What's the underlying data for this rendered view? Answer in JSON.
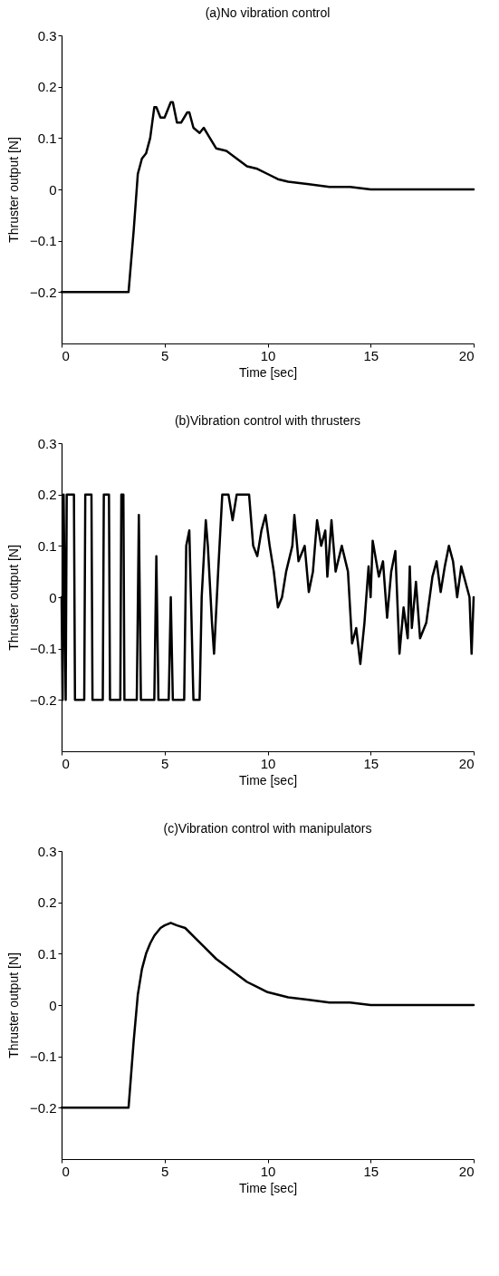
{
  "chart_data": [
    {
      "type": "line",
      "title": "(a)No vibration control",
      "xlabel": "Time [sec]",
      "ylabel": "Thruster output [N]",
      "xlim": [
        0,
        20
      ],
      "ylim": [
        -0.3,
        0.3
      ],
      "xticks": [
        0,
        5,
        10,
        15,
        20
      ],
      "yticks": [
        -0.2,
        -0.1,
        0,
        0.1,
        0.2,
        0.3
      ],
      "x": [
        0,
        1,
        2,
        3,
        3.25,
        3.5,
        3.7,
        3.9,
        4.1,
        4.3,
        4.5,
        4.6,
        4.8,
        5.0,
        5.3,
        5.4,
        5.6,
        5.8,
        6.1,
        6.2,
        6.4,
        6.7,
        6.9,
        7.2,
        7.5,
        8,
        8.5,
        9,
        9.5,
        10,
        10.5,
        11,
        12,
        13,
        14,
        15,
        16,
        17,
        18,
        19,
        20
      ],
      "series": [
        {
          "color": "#000000",
          "values": [
            -0.2,
            -0.2,
            -0.2,
            -0.2,
            -0.2,
            -0.08,
            0.03,
            0.06,
            0.07,
            0.1,
            0.16,
            0.16,
            0.14,
            0.14,
            0.17,
            0.17,
            0.13,
            0.13,
            0.15,
            0.15,
            0.12,
            0.11,
            0.12,
            0.1,
            0.08,
            0.075,
            0.06,
            0.045,
            0.04,
            0.03,
            0.02,
            0.015,
            0.01,
            0.005,
            0.005,
            0,
            0,
            0,
            0,
            0,
            0
          ]
        }
      ]
    },
    {
      "type": "line",
      "title": "(b)Vibration control with thrusters",
      "xlabel": "Time [sec]",
      "ylabel": "Thruster output [N]",
      "xlim": [
        0,
        20
      ],
      "ylim": [
        -0.3,
        0.3
      ],
      "xticks": [
        0,
        5,
        10,
        15,
        20
      ],
      "yticks": [
        -0.2,
        -0.1,
        0,
        0.1,
        0.2,
        0.3
      ],
      "x": [
        0,
        0.05,
        0.1,
        0.2,
        0.25,
        0.6,
        0.65,
        1.1,
        1.15,
        1.45,
        1.5,
        2.0,
        2.05,
        2.3,
        2.35,
        2.85,
        2.9,
        3.0,
        3.05,
        3.65,
        3.75,
        3.85,
        4.5,
        4.6,
        4.7,
        5.2,
        5.3,
        5.4,
        5.95,
        6.05,
        6.2,
        6.4,
        6.7,
        6.8,
        7.0,
        7.1,
        7.3,
        7.4,
        7.6,
        7.8,
        8.1,
        8.3,
        8.5,
        9.1,
        9.3,
        9.5,
        9.7,
        9.9,
        10.1,
        10.3,
        10.5,
        10.7,
        10.9,
        11.2,
        11.3,
        11.5,
        11.8,
        12.0,
        12.2,
        12.4,
        12.6,
        12.8,
        12.9,
        13.1,
        13.3,
        13.6,
        13.9,
        14.1,
        14.3,
        14.5,
        14.7,
        14.9,
        15.0,
        15.1,
        15.4,
        15.6,
        15.8,
        16.0,
        16.2,
        16.4,
        16.6,
        16.8,
        16.9,
        17.0,
        17.2,
        17.4,
        17.7,
        18.0,
        18.2,
        18.4,
        18.6,
        18.8,
        19.0,
        19.2,
        19.4,
        19.6,
        19.8,
        19.9,
        20.0
      ],
      "series": [
        {
          "color": "#000000",
          "values": [
            0,
            -0.2,
            0.2,
            -0.2,
            0.2,
            0.2,
            -0.2,
            -0.2,
            0.2,
            0.2,
            -0.2,
            -0.2,
            0.2,
            0.2,
            -0.2,
            -0.2,
            0.2,
            0.2,
            -0.2,
            -0.2,
            0.16,
            -0.2,
            -0.2,
            0.08,
            -0.2,
            -0.2,
            0,
            -0.2,
            -0.2,
            0.1,
            0.13,
            -0.2,
            -0.2,
            0,
            0.15,
            0.1,
            -0.05,
            -0.11,
            0.05,
            0.2,
            0.2,
            0.15,
            0.2,
            0.2,
            0.1,
            0.08,
            0.13,
            0.16,
            0.1,
            0.05,
            -0.02,
            0,
            0.05,
            0.1,
            0.16,
            0.07,
            0.1,
            0.01,
            0.05,
            0.15,
            0.1,
            0.13,
            0.04,
            0.15,
            0.05,
            0.1,
            0.05,
            -0.09,
            -0.06,
            -0.13,
            -0.05,
            0.06,
            0,
            0.11,
            0.04,
            0.07,
            -0.04,
            0.05,
            0.09,
            -0.11,
            -0.02,
            -0.08,
            0.06,
            -0.06,
            0.03,
            -0.08,
            -0.05,
            0.04,
            0.07,
            0.01,
            0.06,
            0.1,
            0.07,
            0,
            0.06,
            0.03,
            0,
            -0.11,
            0
          ]
        }
      ]
    },
    {
      "type": "line",
      "title": "(c)Vibration control with manipulators",
      "xlabel": "Time [sec]",
      "ylabel": "Thruster output [N]",
      "xlim": [
        0,
        20
      ],
      "ylim": [
        -0.3,
        0.3
      ],
      "xticks": [
        0,
        5,
        10,
        15,
        20
      ],
      "yticks": [
        -0.2,
        -0.1,
        0,
        0.1,
        0.2,
        0.3
      ],
      "x": [
        0,
        1,
        2,
        3,
        3.25,
        3.5,
        3.7,
        3.9,
        4.1,
        4.3,
        4.5,
        4.8,
        5.0,
        5.3,
        5.6,
        6.0,
        6.5,
        7.0,
        7.5,
        8.0,
        8.5,
        9,
        9.5,
        10,
        11,
        12,
        13,
        14,
        15,
        16,
        17,
        18,
        19,
        20
      ],
      "series": [
        {
          "color": "#000000",
          "values": [
            -0.2,
            -0.2,
            -0.2,
            -0.2,
            -0.2,
            -0.07,
            0.02,
            0.07,
            0.1,
            0.12,
            0.135,
            0.15,
            0.155,
            0.16,
            0.155,
            0.15,
            0.13,
            0.11,
            0.09,
            0.075,
            0.06,
            0.045,
            0.035,
            0.025,
            0.015,
            0.01,
            0.005,
            0.005,
            0,
            0,
            0,
            0,
            0,
            0
          ]
        }
      ]
    }
  ]
}
